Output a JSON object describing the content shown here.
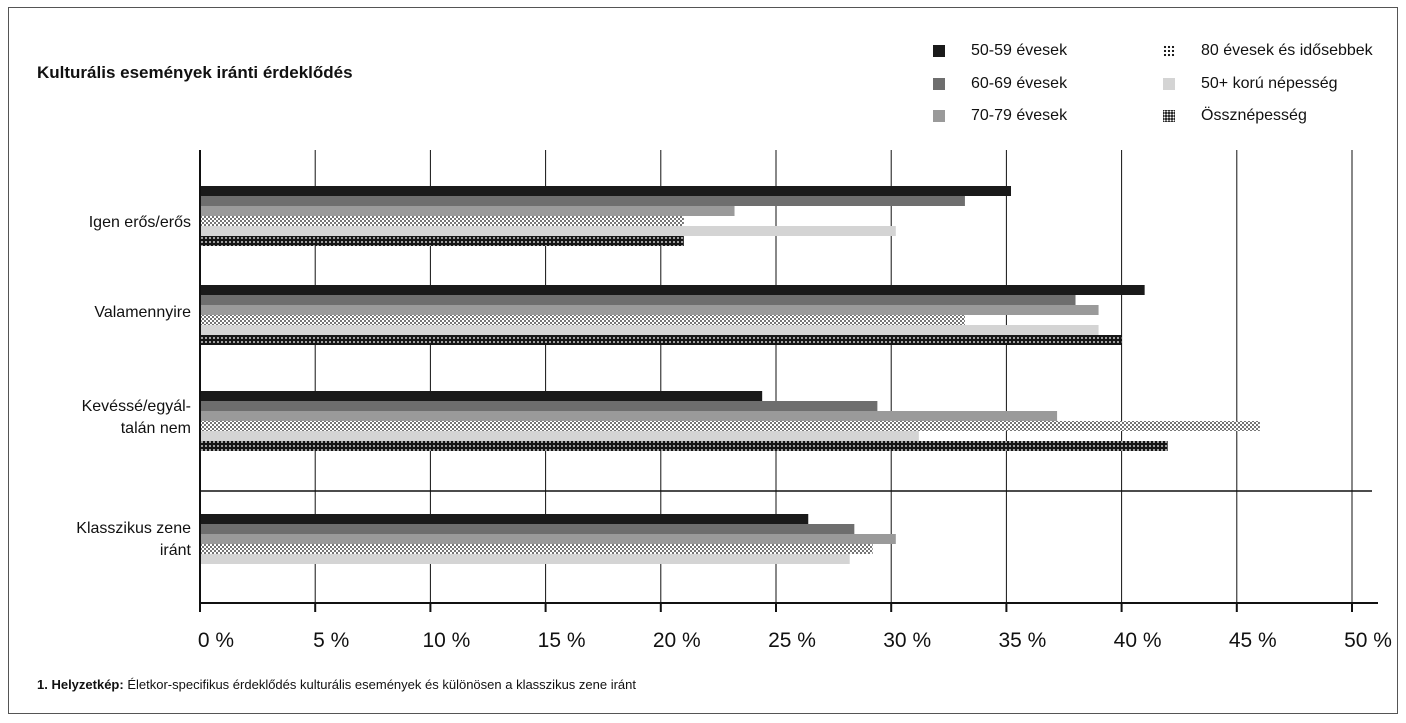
{
  "colors": {
    "s1": "#1a1a1a",
    "s2": "#6e6e6e",
    "s3": "#9a9a9a",
    "s5": "#d4d4d4",
    "grid": "#111111",
    "dot": "#111111"
  },
  "caption": {
    "bold": "1. Helyzetkép:",
    "text": " Életkor-specifikus érdeklődés kulturális események és különösen a klasszikus zene iránt"
  },
  "chart_data": {
    "type": "bar",
    "orientation": "horizontal",
    "title": "Kulturális események iránti érdeklődés",
    "xlim": [
      0,
      50
    ],
    "ticks": [
      "0 %",
      "5 %",
      "10 %",
      "15 %",
      "20 %",
      "25 %",
      "30 %",
      "35 %",
      "40 %",
      "45 %",
      "50 %"
    ],
    "grid": true,
    "legend_position": "top-right",
    "categories": [
      "Igen erős/erős",
      "Valamennyire",
      "Kevéssé/egyál-\ntalán nem",
      "Klasszikus zene\niránt"
    ],
    "series": [
      {
        "name": "50-59 évesek",
        "pattern": "solid-dark",
        "values": [
          35.2,
          41.0,
          24.4,
          26.4
        ]
      },
      {
        "name": "60-69 évesek",
        "pattern": "solid-mid",
        "values": [
          33.2,
          38.0,
          29.4,
          28.4
        ]
      },
      {
        "name": "70-79 évesek",
        "pattern": "solid-light",
        "values": [
          23.2,
          39.0,
          37.2,
          30.2
        ]
      },
      {
        "name": "80 évesek és idősebbek",
        "pattern": "dotted",
        "values": [
          21.0,
          33.2,
          46.0,
          29.2
        ]
      },
      {
        "name": "50+ korú népesség",
        "pattern": "solid-pale",
        "values": [
          30.2,
          39.0,
          31.2,
          28.2
        ]
      },
      {
        "name": "Össznépesség",
        "pattern": "checker",
        "values": [
          21.0,
          40.0,
          42.0,
          null
        ]
      }
    ]
  }
}
